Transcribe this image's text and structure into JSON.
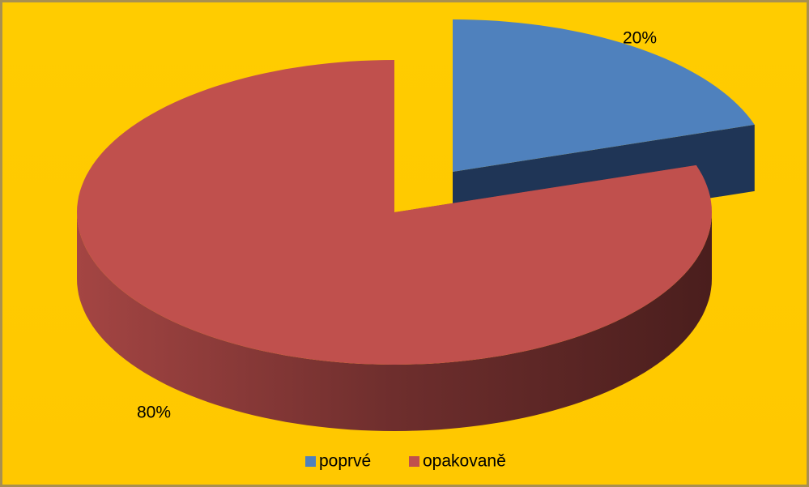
{
  "chart_data": {
    "type": "pie",
    "categories": [
      "poprvé",
      "opakovaně"
    ],
    "values": [
      20,
      80
    ],
    "value_labels": [
      "20%",
      "80%"
    ],
    "colors": [
      "#4f81bd",
      "#c0504d"
    ],
    "legend": "bottom"
  }
}
